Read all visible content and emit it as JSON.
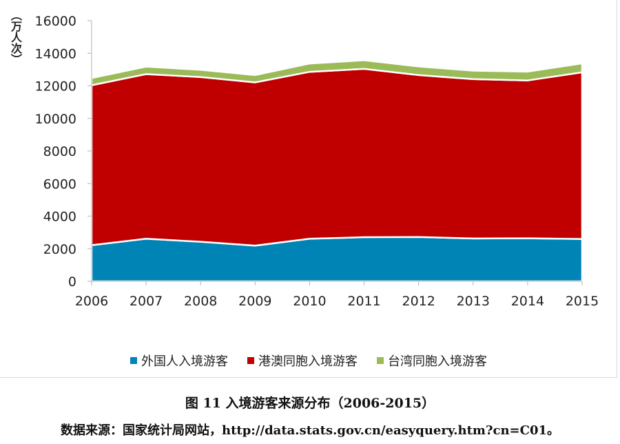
{
  "chart_data": {
    "type": "area",
    "stacked": true,
    "x": [
      "2006",
      "2007",
      "2008",
      "2009",
      "2010",
      "2011",
      "2012",
      "2013",
      "2014",
      "2015"
    ],
    "ylabel": "（万人次）",
    "ylim": [
      0,
      16000
    ],
    "yticks": [
      0,
      2000,
      4000,
      6000,
      8000,
      10000,
      12000,
      14000,
      16000
    ],
    "grid": false,
    "legend_position": "bottom",
    "series": [
      {
        "name": "外国人入境游客",
        "color": "#0084B5",
        "values": [
          2220,
          2610,
          2430,
          2190,
          2610,
          2710,
          2720,
          2630,
          2640,
          2600
        ]
      },
      {
        "name": "港澳同胞入境游客",
        "color": "#C00000",
        "values": [
          9820,
          10110,
          10110,
          10020,
          10250,
          10330,
          9940,
          9780,
          9690,
          10230
        ]
      },
      {
        "name": "台湾同胞入境游客",
        "color": "#9BBB59",
        "values": [
          440,
          460,
          440,
          450,
          510,
          530,
          530,
          520,
          540,
          550
        ]
      }
    ]
  },
  "caption": "图 11  入境游客来源分布（2006-2015）",
  "source": "数据来源：国家统计局网站，http://data.stats.gov.cn/easyquery.htm?cn=C01。"
}
